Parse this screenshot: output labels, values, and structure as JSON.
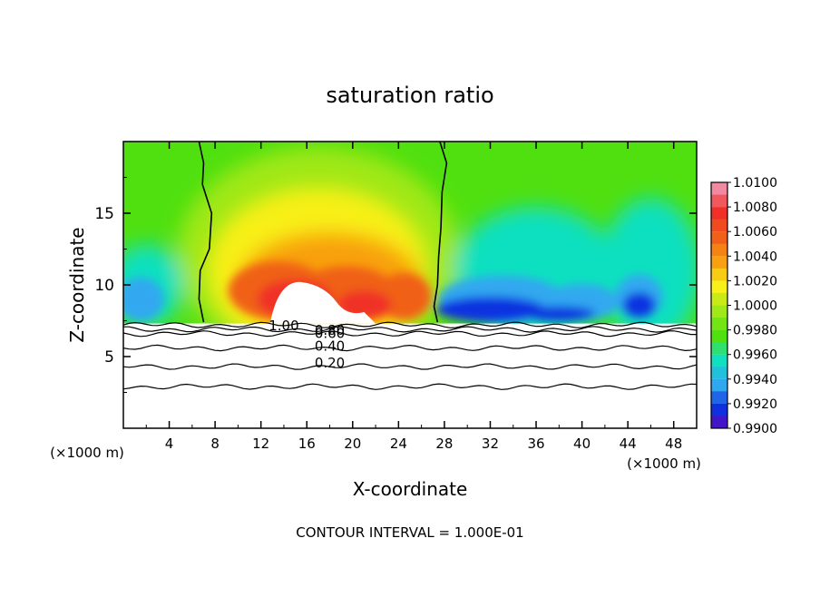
{
  "chart_data": {
    "type": "heatmap",
    "title": "saturation ratio",
    "xlabel": "X-coordinate",
    "ylabel": "Z-coordinate",
    "x_unit_left": "(×1000 m)",
    "x_unit_right": "(×1000 m)",
    "footer": "CONTOUR INTERVAL = 1.000E-01",
    "xlim": [
      0,
      50
    ],
    "ylim": [
      0,
      20
    ],
    "x_ticks": [
      4,
      8,
      12,
      16,
      20,
      24,
      28,
      32,
      36,
      40,
      44,
      48
    ],
    "y_ticks": [
      5,
      10,
      15
    ],
    "colorbar": {
      "levels": [
        "1.0100",
        "1.0080",
        "1.0060",
        "1.0040",
        "1.0020",
        "1.0000",
        "0.9980",
        "0.9960",
        "0.9940",
        "0.9920",
        "0.9900"
      ],
      "colors": [
        "#f08aa0",
        "#f03028",
        "#f06018",
        "#f8a010",
        "#f8f018",
        "#a0e818",
        "#50e010",
        "#10e0c0",
        "#30a8f0",
        "#1030e0",
        "#7000b0"
      ]
    },
    "field_region": {
      "z_bottom": 7.3,
      "description_values": {
        "background": 1.0,
        "cloud_core_max": 1.01,
        "clear_air_min": 0.99
      }
    },
    "contours": [
      {
        "label": "1.00",
        "z": 7.2
      },
      {
        "label": "0.80",
        "z": 6.9
      },
      {
        "label": "0.60",
        "z": 6.6
      },
      {
        "label": "0.40",
        "z": 5.6
      },
      {
        "label": "0.20",
        "z": 4.3
      },
      {
        "label": "",
        "z": 2.9
      }
    ],
    "contour_label_positions_note": "",
    "saturation_boundaries": [
      {
        "name": "left",
        "points": [
          [
            6.6,
            20
          ],
          [
            7.0,
            18.5
          ],
          [
            6.9,
            17
          ],
          [
            7.7,
            15
          ],
          [
            7.5,
            12.5
          ],
          [
            6.7,
            11
          ],
          [
            6.6,
            9
          ],
          [
            7.0,
            7.4
          ]
        ]
      },
      {
        "name": "right",
        "points": [
          [
            27.6,
            20
          ],
          [
            28.2,
            18.5
          ],
          [
            27.8,
            16.5
          ],
          [
            27.7,
            14
          ],
          [
            27.5,
            12
          ],
          [
            27.4,
            10
          ],
          [
            27.1,
            8.5
          ],
          [
            27.4,
            7.4
          ]
        ]
      }
    ]
  }
}
